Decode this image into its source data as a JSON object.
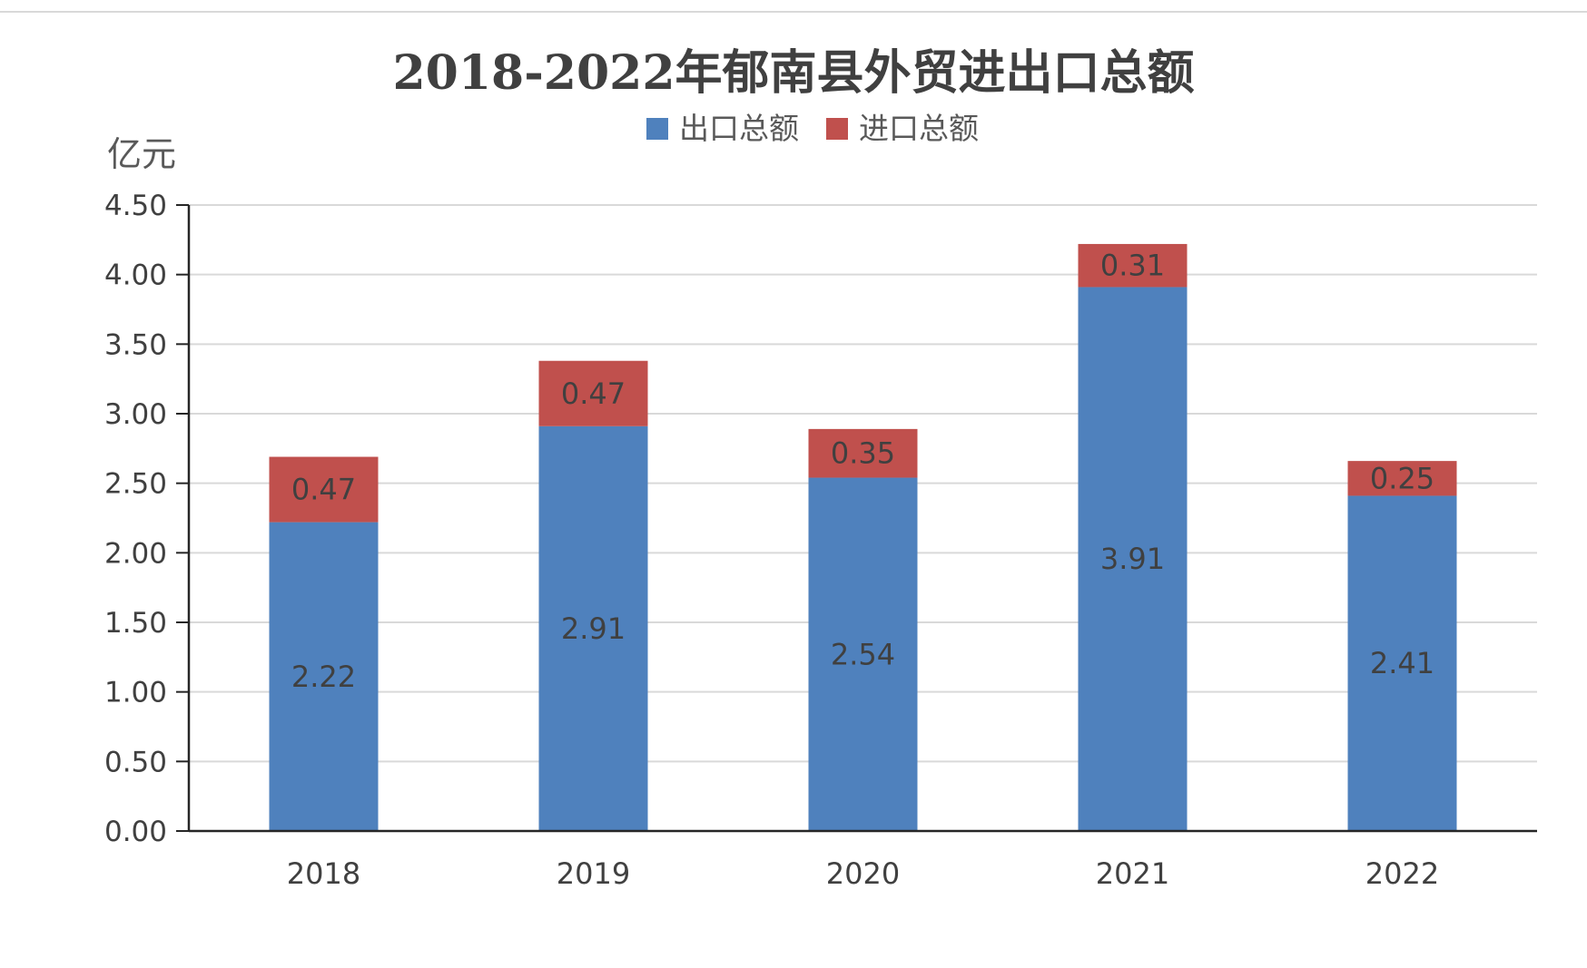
{
  "chart_data": {
    "type": "bar",
    "stacked": true,
    "title": "2018-2022年郁南县外贸进出口总额",
    "ylabel": "亿元",
    "xlabel": "",
    "categories": [
      "2018",
      "2019",
      "2020",
      "2021",
      "2022"
    ],
    "series": [
      {
        "name": "出口总额",
        "values": [
          2.22,
          2.91,
          2.54,
          3.91,
          2.41
        ],
        "color": "#4f81bd"
      },
      {
        "name": "进口总额",
        "values": [
          0.47,
          0.47,
          0.35,
          0.31,
          0.25
        ],
        "color": "#c0504d"
      }
    ],
    "ylim": [
      0,
      4.5
    ],
    "yticks": [
      "0.00",
      "0.50",
      "1.00",
      "1.50",
      "2.00",
      "2.50",
      "3.00",
      "3.50",
      "4.00",
      "4.50"
    ],
    "grid": true,
    "legend": "top-center"
  }
}
